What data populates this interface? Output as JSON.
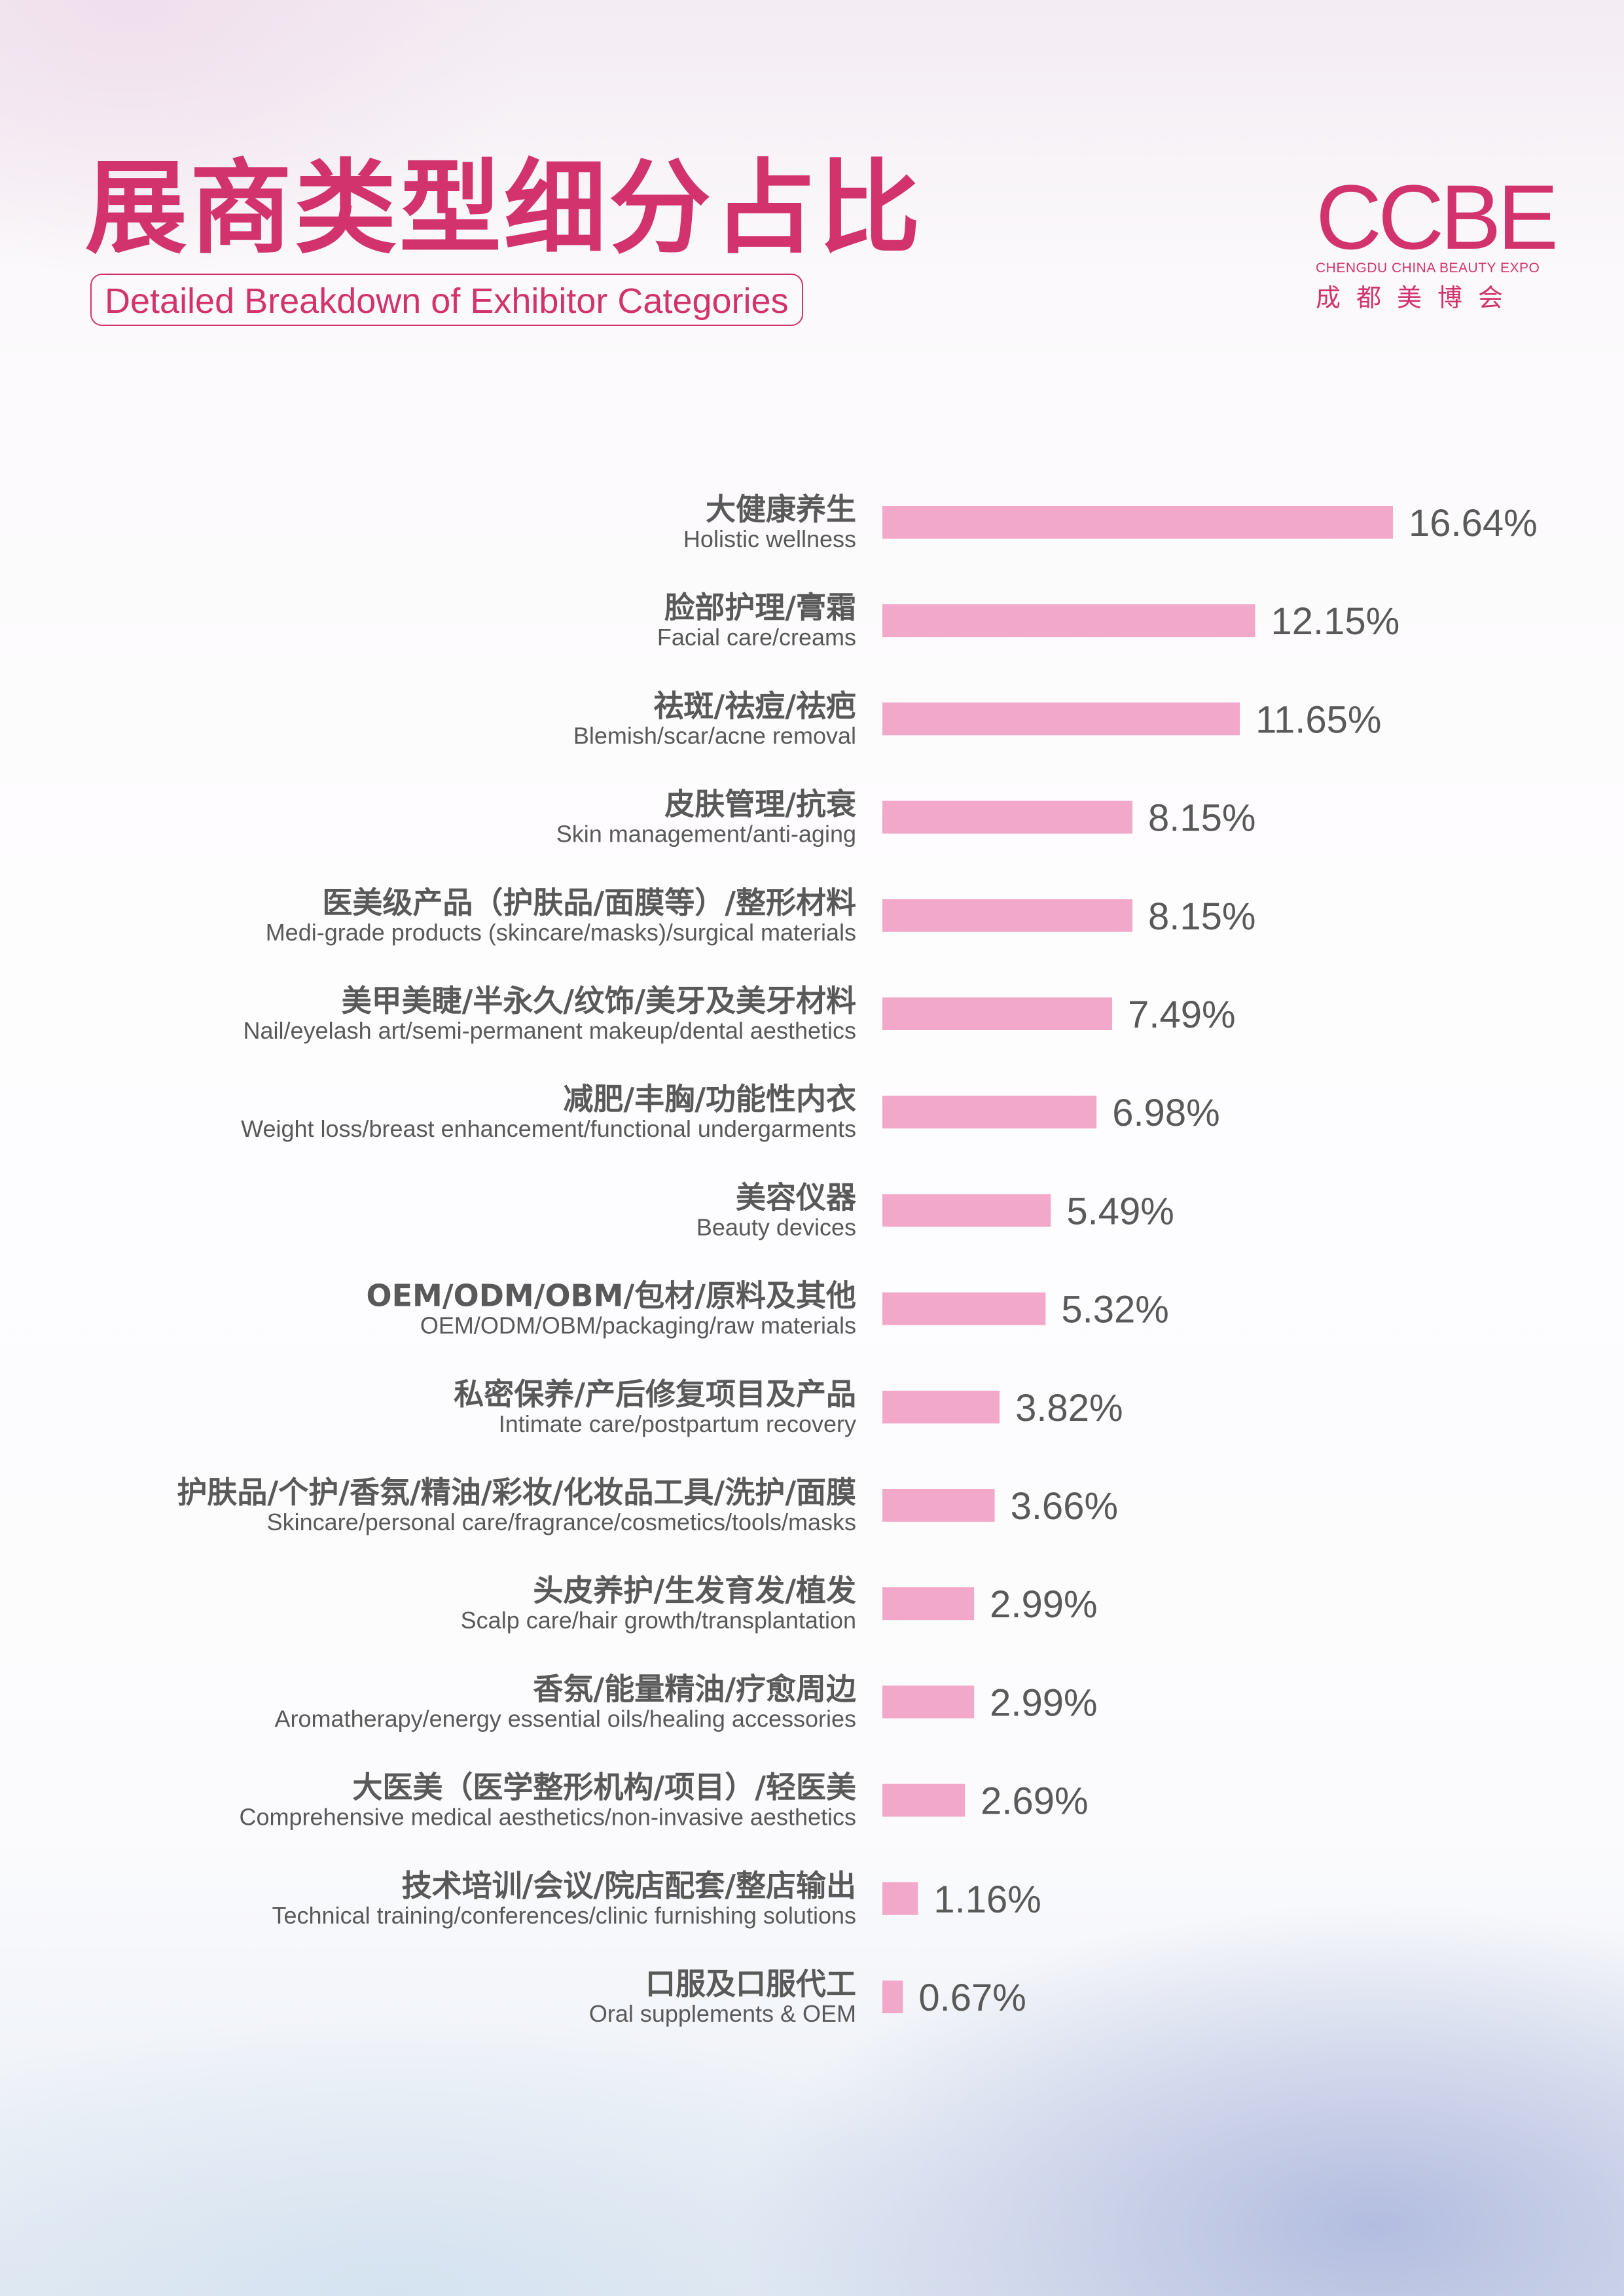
{
  "header": {
    "title_cn": "展商类型细分占比",
    "title_en": "Detailed Breakdown of Exhibitor Categories"
  },
  "logo": {
    "mark": "CCBE",
    "subtitle": "CHENGDU CHINA BEAUTY EXPO",
    "name_cn": "成都美博会"
  },
  "colors": {
    "accent": "#d2336d",
    "bar": "#f2a9c9",
    "label": "#595959"
  },
  "chart_data": {
    "type": "bar",
    "orientation": "horizontal",
    "title": "展商类型细分占比",
    "subtitle": "Detailed Breakdown of Exhibitor Categories",
    "unit": "%",
    "xlim": [
      0,
      16.64
    ],
    "grid": false,
    "categories": [
      {
        "cn": "大健康养生",
        "en": "Holistic wellness",
        "value": 16.64,
        "label": "16.64%"
      },
      {
        "cn": "脸部护理/膏霜",
        "en": "Facial care/creams",
        "value": 12.15,
        "label": "12.15%"
      },
      {
        "cn": "祛斑/祛痘/祛疤",
        "en": "Blemish/scar/acne removal",
        "value": 11.65,
        "label": "11.65%"
      },
      {
        "cn": "皮肤管理/抗衰",
        "en": "Skin management/anti-aging",
        "value": 8.15,
        "label": "8.15%"
      },
      {
        "cn": "医美级产品（护肤品/面膜等）/整形材料",
        "en": "Medi-grade products (skincare/masks)/surgical materials",
        "value": 8.15,
        "label": "8.15%"
      },
      {
        "cn": "美甲美睫/半永久/纹饰/美牙及美牙材料",
        "en": "Nail/eyelash art/semi-permanent makeup/dental aesthetics",
        "value": 7.49,
        "label": "7.49%"
      },
      {
        "cn": "减肥/丰胸/功能性内衣",
        "en": "Weight loss/breast enhancement/functional undergarments",
        "value": 6.98,
        "label": "6.98%"
      },
      {
        "cn": "美容仪器",
        "en": "Beauty devices",
        "value": 5.49,
        "label": "5.49%"
      },
      {
        "cn": "OEM/ODM/OBM/包材/原料及其他",
        "en": "OEM/ODM/OBM/packaging/raw materials",
        "value": 5.32,
        "label": "5.32%"
      },
      {
        "cn": "私密保养/产后修复项目及产品",
        "en": "Intimate care/postpartum recovery",
        "value": 3.82,
        "label": "3.82%"
      },
      {
        "cn": "护肤品/个护/香氛/精油/彩妆/化妆品工具/洗护/面膜",
        "en": "Skincare/personal care/fragrance/cosmetics/tools/masks",
        "value": 3.66,
        "label": "3.66%"
      },
      {
        "cn": "头皮养护/生发育发/植发",
        "en": "Scalp care/hair growth/transplantation",
        "value": 2.99,
        "label": "2.99%"
      },
      {
        "cn": "香氛/能量精油/疗愈周边",
        "en": "Aromatherapy/energy essential oils/healing accessories",
        "value": 2.99,
        "label": "2.99%"
      },
      {
        "cn": "大医美（医学整形机构/项目）/轻医美",
        "en": "Comprehensive medical aesthetics/non-invasive aesthetics",
        "value": 2.69,
        "label": "2.69%"
      },
      {
        "cn": "技术培训/会议/院店配套/整店输出",
        "en": "Technical training/conferences/clinic furnishing solutions",
        "value": 1.16,
        "label": "1.16%"
      },
      {
        "cn": "口服及口服代工",
        "en": "Oral supplements & OEM",
        "value": 0.67,
        "label": "0.67%"
      }
    ]
  }
}
